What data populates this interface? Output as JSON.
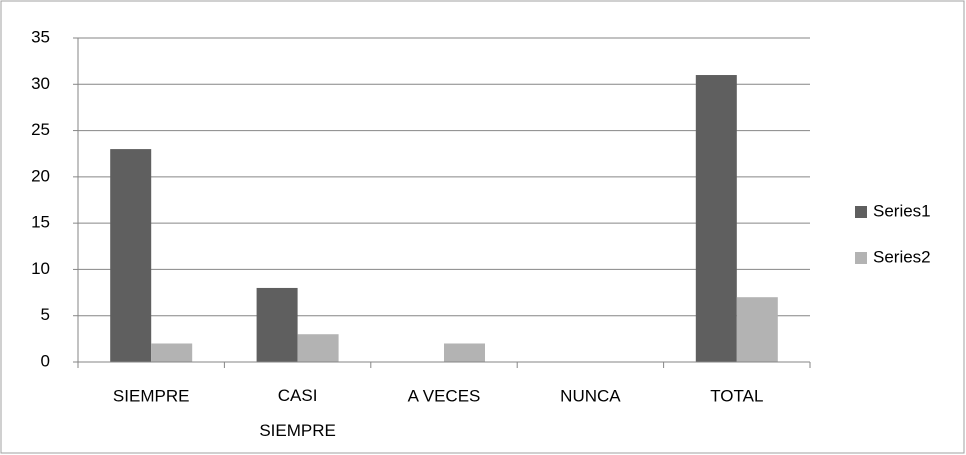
{
  "chart_data": {
    "type": "bar",
    "categories": [
      "SIEMPRE",
      "CASI SIEMPRE",
      "A VECES",
      "NUNCA",
      "TOTAL"
    ],
    "series": [
      {
        "name": "Series1",
        "color": "#5f5f5f",
        "values": [
          23,
          8,
          0,
          0,
          31
        ]
      },
      {
        "name": "Series2",
        "color": "#b3b3b3",
        "values": [
          2,
          3,
          2,
          0,
          7
        ]
      }
    ],
    "ylim": [
      0,
      35
    ],
    "yticks": [
      0,
      5,
      10,
      15,
      20,
      25,
      30,
      35
    ],
    "grid": true,
    "legend": "right"
  }
}
